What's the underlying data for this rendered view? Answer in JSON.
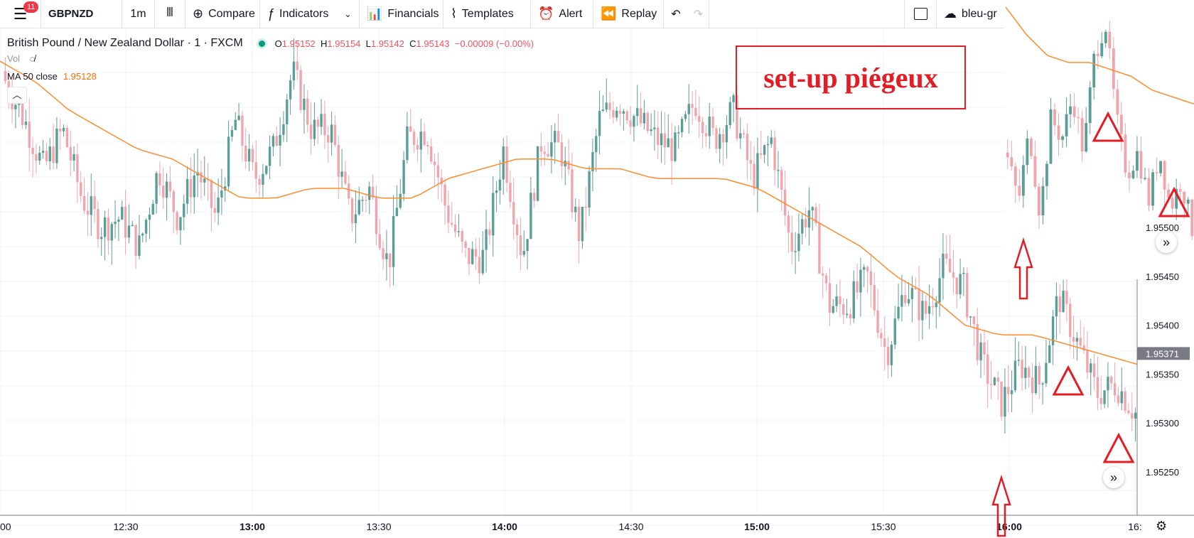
{
  "toolbar": {
    "badge": "11",
    "symbol": "GBPNZD",
    "interval": "1m",
    "compare": "Compare",
    "indicators": "Indicators",
    "financials": "Financials",
    "templates": "Templates",
    "alert": "Alert",
    "replay": "Replay",
    "layout": "bleu-gr"
  },
  "legend": {
    "title": "British Pound / New Zealand Dollar · 1 · FXCM",
    "o_label": "O",
    "o": "1.95152",
    "h_label": "H",
    "h": "1.95154",
    "l_label": "L",
    "l": "1.95142",
    "c_label": "C",
    "c": "1.95143",
    "change": "−0.00009 (−0.00%)",
    "vol": "Vol",
    "ma_label": "MA 50 close",
    "ma_value": "1.95128"
  },
  "annotation": "set-up piégeux",
  "colors": {
    "up": "#5b9e95",
    "down": "#f0a5ad",
    "ma": "#ff8c2e",
    "annot": "#e31c25"
  },
  "chart_data": {
    "type": "candlestick",
    "symbol": "GBPNZD",
    "interval": "1m",
    "time_ticks": [
      "00",
      "12:30",
      "13:00",
      "13:30",
      "14:00",
      "14:30",
      "15:00",
      "15:30",
      "16:00",
      "16:"
    ],
    "time_ticks_bold": [
      "13:00",
      "14:00",
      "15:00",
      "16:00"
    ],
    "price_ticks": [
      "1.95500",
      "1.95450",
      "1.95400",
      "1.95350",
      "1.95300",
      "1.95250"
    ],
    "last_price": "1.95371",
    "ylim": [
      1.9522,
      1.957
    ],
    "ma_period": 50,
    "close_path": [
      1.9565,
      1.9561,
      1.9556,
      1.956,
      1.9553,
      1.955,
      1.9551,
      1.9548,
      1.9556,
      1.9551,
      1.9556,
      1.9551,
      1.9561,
      1.9555,
      1.9558,
      1.9566,
      1.956,
      1.956,
      1.9551,
      1.9554,
      1.9546,
      1.9559,
      1.956,
      1.9552,
      1.9547,
      1.9547,
      1.9558,
      1.9547,
      1.9559,
      1.9558,
      1.9549,
      1.9561,
      1.9563,
      1.9561,
      1.9559,
      1.9558,
      1.9563,
      1.9559,
      1.9562,
      1.9555,
      1.9559,
      1.9548,
      1.9552,
      1.9542,
      1.9542,
      1.9545,
      1.9537,
      1.9544,
      1.9541,
      1.9546,
      1.9544,
      1.9536,
      1.9532,
      1.9536,
      1.9534,
      1.9543,
      1.9538,
      1.9533,
      1.9534,
      1.9531
    ],
    "ma_path": [
      1.9567,
      1.9565,
      1.9562,
      1.956,
      1.9558,
      1.9557,
      1.9555,
      1.9553,
      1.9553,
      1.9554,
      1.9554,
      1.9553,
      1.9553,
      1.9555,
      1.9556,
      1.9557,
      1.9557,
      1.9556,
      1.9556,
      1.9555,
      1.9555,
      1.9555,
      1.9554,
      1.9552,
      1.955,
      1.9548,
      1.9545,
      1.9543,
      1.954,
      1.9539,
      1.9539,
      1.9538,
      1.9537,
      1.9536
    ],
    "inset": {
      "close_path": [
        1.9546,
        1.954,
        1.955,
        1.9538,
        1.9552,
        1.9549,
        1.9555,
        1.9547,
        1.9561,
        1.9566,
        1.9552,
        1.9544,
        1.9547,
        1.954,
        1.9547,
        1.9539,
        1.9543,
        1.9536
      ],
      "ma_path": [
        1.9568,
        1.9564,
        1.9561,
        1.956,
        1.956,
        1.9559,
        1.9558,
        1.9556,
        1.9555,
        1.9554
      ]
    },
    "markers": [
      {
        "kind": "arrow-up",
        "where": "main"
      },
      {
        "kind": "triangle",
        "where": "main"
      },
      {
        "kind": "triangle",
        "where": "main"
      },
      {
        "kind": "arrow-up",
        "where": "inset"
      },
      {
        "kind": "triangle",
        "where": "inset"
      },
      {
        "kind": "triangle",
        "where": "inset"
      }
    ]
  }
}
